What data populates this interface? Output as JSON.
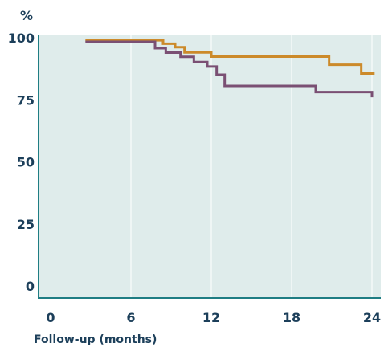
{
  "chart_data": {
    "type": "line",
    "step": true,
    "ylabel": "%",
    "xlabel": "Follow-up (months)",
    "xlim": [
      0,
      24
    ],
    "ylim": [
      0,
      100
    ],
    "x_ticks": [
      "0",
      "6",
      "12",
      "18",
      "24"
    ],
    "y_ticks": [
      "0",
      "25",
      "50",
      "75",
      "100"
    ],
    "grid": true,
    "background_color": "#dfeceb",
    "axis_color": "#1f7d83",
    "text_color": "#1c3f5a",
    "series": [
      {
        "color": "#cc8a2a",
        "points": [
          [
            2.6,
            99.0
          ],
          [
            8.4,
            99.0
          ],
          [
            8.4,
            97.6
          ],
          [
            9.3,
            97.6
          ],
          [
            9.3,
            96.2
          ],
          [
            10.0,
            96.2
          ],
          [
            10.0,
            94.1
          ],
          [
            12.0,
            94.1
          ],
          [
            12.0,
            92.4
          ],
          [
            20.8,
            92.4
          ],
          [
            20.8,
            89.1
          ],
          [
            23.2,
            89.1
          ],
          [
            23.2,
            85.6
          ],
          [
            24.2,
            85.6
          ]
        ]
      },
      {
        "color": "#7a4f73",
        "points": [
          [
            2.6,
            98.4
          ],
          [
            7.8,
            98.4
          ],
          [
            7.8,
            95.8
          ],
          [
            8.6,
            95.8
          ],
          [
            8.6,
            94.0
          ],
          [
            9.7,
            94.0
          ],
          [
            9.7,
            92.3
          ],
          [
            10.7,
            92.3
          ],
          [
            10.7,
            90.2
          ],
          [
            11.7,
            90.2
          ],
          [
            11.7,
            88.4
          ],
          [
            12.4,
            88.4
          ],
          [
            12.4,
            85.1
          ],
          [
            13.0,
            85.1
          ],
          [
            13.0,
            80.6
          ],
          [
            19.8,
            80.6
          ],
          [
            19.8,
            78.1
          ],
          [
            24.0,
            78.1
          ],
          [
            24.0,
            76.0
          ]
        ]
      }
    ]
  }
}
